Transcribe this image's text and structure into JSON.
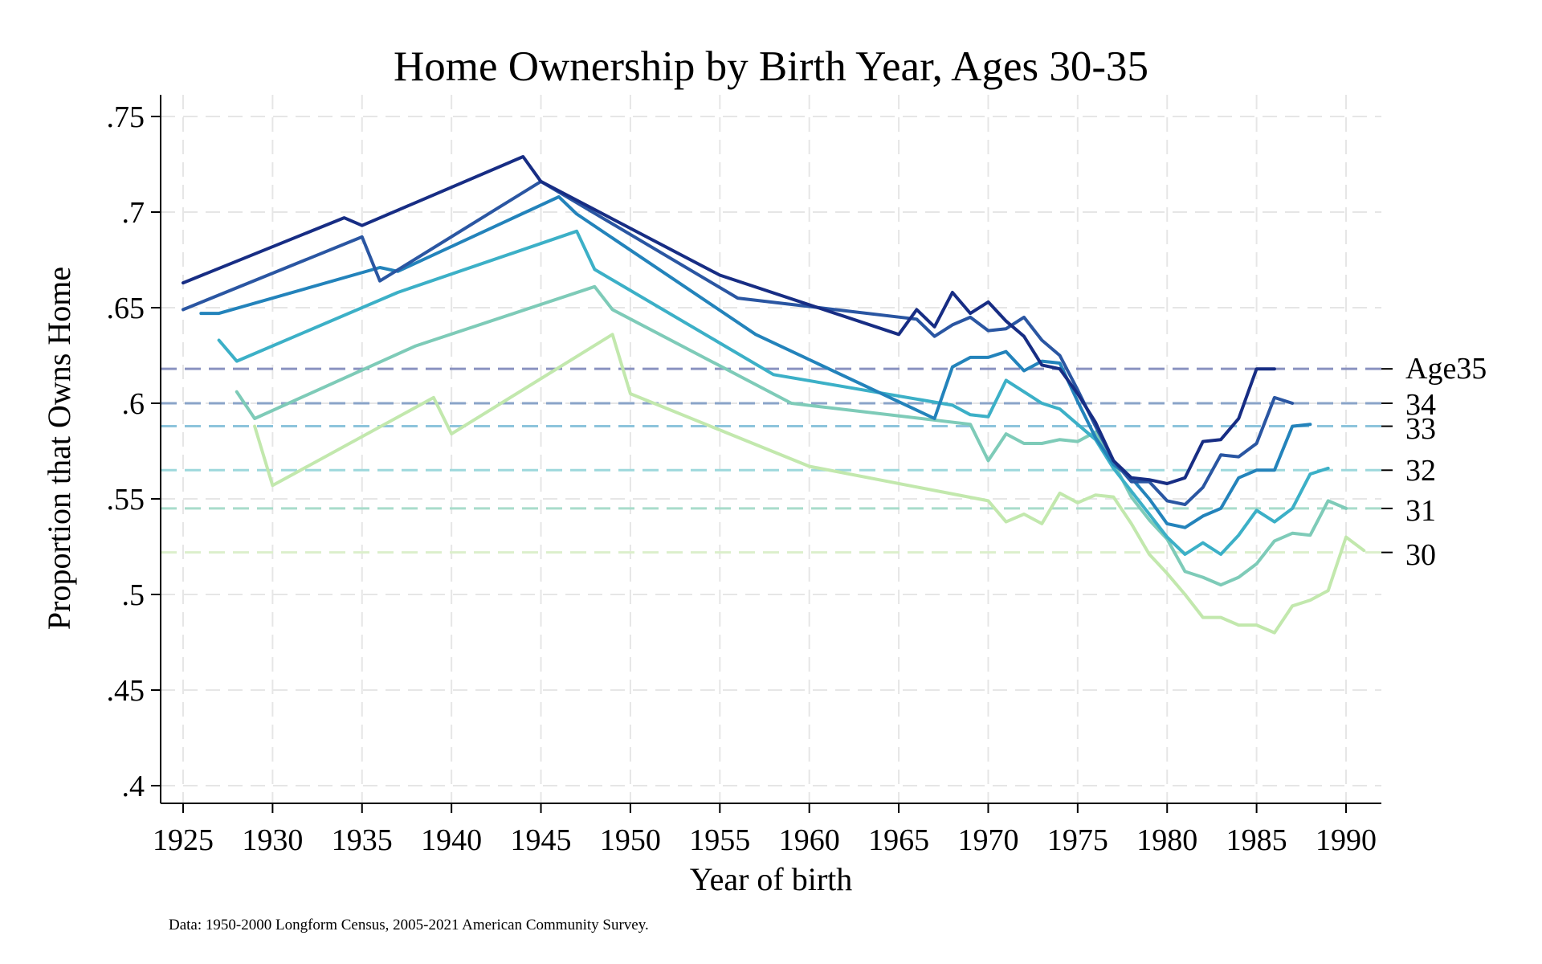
{
  "chart_data": {
    "type": "line",
    "title": "Home Ownership by Birth Year, Ages 30-35",
    "xlabel": "Year of birth",
    "ylabel": "Proportion that Owns Home",
    "note": "Data: 1950-2000 Longform Census, 2005-2021 American Community Survey.",
    "xlim": [
      1924,
      1992
    ],
    "ylim": [
      0.39,
      0.76
    ],
    "xticks": [
      1925,
      1930,
      1935,
      1940,
      1945,
      1950,
      1955,
      1960,
      1965,
      1970,
      1975,
      1980,
      1985,
      1990
    ],
    "xtick_labels": [
      "1925",
      "1930",
      "1935",
      "1940",
      "1945",
      "1950",
      "1955",
      "1960",
      "1965",
      "1970",
      "1975",
      "1980",
      "1985",
      "1990"
    ],
    "yticks": [
      0.4,
      0.45,
      0.5,
      0.55,
      0.6,
      0.65,
      0.7,
      0.75
    ],
    "ytick_labels": [
      ".4",
      ".45",
      ".5",
      ".55",
      ".6",
      ".65",
      ".7",
      ".75"
    ],
    "grid": true,
    "reference_lines": [
      {
        "label": "Age35",
        "value": 0.618,
        "color": "#8a92c0"
      },
      {
        "label": "34",
        "value": 0.6,
        "color": "#8aa4c8"
      },
      {
        "label": "33",
        "value": 0.588,
        "color": "#8ec4dc"
      },
      {
        "label": "32",
        "value": 0.565,
        "color": "#9dd8dc"
      },
      {
        "label": "31",
        "value": 0.545,
        "color": "#a8dccb"
      },
      {
        "label": "30",
        "value": 0.522,
        "color": "#dcefcc"
      }
    ],
    "series": [
      {
        "age": 35,
        "color": "#172d84",
        "points": [
          [
            1925,
            0.663
          ],
          [
            1934,
            0.697
          ],
          [
            1935,
            0.693
          ],
          [
            1944,
            0.729
          ],
          [
            1945,
            0.716
          ],
          [
            1955,
            0.667
          ],
          [
            1965,
            0.636
          ],
          [
            1966,
            0.649
          ],
          [
            1967,
            0.64
          ],
          [
            1968,
            0.658
          ],
          [
            1969,
            0.647
          ],
          [
            1970,
            0.653
          ],
          [
            1971,
            0.643
          ],
          [
            1972,
            0.635
          ],
          [
            1973,
            0.62
          ],
          [
            1974,
            0.618
          ],
          [
            1975,
            0.605
          ],
          [
            1976,
            0.59
          ],
          [
            1977,
            0.57
          ],
          [
            1978,
            0.561
          ],
          [
            1979,
            0.56
          ],
          [
            1980,
            0.558
          ],
          [
            1981,
            0.561
          ],
          [
            1982,
            0.58
          ],
          [
            1983,
            0.581
          ],
          [
            1984,
            0.592
          ],
          [
            1985,
            0.618
          ],
          [
            1986,
            0.618
          ]
        ]
      },
      {
        "age": 34,
        "color": "#2a56a2",
        "points": [
          [
            1925,
            0.649
          ],
          [
            1935,
            0.687
          ],
          [
            1936,
            0.664
          ],
          [
            1945,
            0.716
          ],
          [
            1956,
            0.655
          ],
          [
            1966,
            0.644
          ],
          [
            1967,
            0.635
          ],
          [
            1968,
            0.641
          ],
          [
            1969,
            0.645
          ],
          [
            1970,
            0.638
          ],
          [
            1971,
            0.639
          ],
          [
            1972,
            0.645
          ],
          [
            1973,
            0.633
          ],
          [
            1974,
            0.625
          ],
          [
            1975,
            0.607
          ],
          [
            1976,
            0.588
          ],
          [
            1977,
            0.57
          ],
          [
            1978,
            0.559
          ],
          [
            1979,
            0.559
          ],
          [
            1980,
            0.549
          ],
          [
            1981,
            0.547
          ],
          [
            1982,
            0.556
          ],
          [
            1983,
            0.573
          ],
          [
            1984,
            0.572
          ],
          [
            1985,
            0.579
          ],
          [
            1986,
            0.603
          ],
          [
            1987,
            0.6
          ]
        ]
      },
      {
        "age": 33,
        "color": "#2383bb",
        "points": [
          [
            1926,
            0.647
          ],
          [
            1927,
            0.647
          ],
          [
            1936,
            0.671
          ],
          [
            1937,
            0.669
          ],
          [
            1946,
            0.708
          ],
          [
            1947,
            0.699
          ],
          [
            1957,
            0.636
          ],
          [
            1967,
            0.592
          ],
          [
            1968,
            0.619
          ],
          [
            1969,
            0.624
          ],
          [
            1970,
            0.624
          ],
          [
            1971,
            0.627
          ],
          [
            1972,
            0.617
          ],
          [
            1973,
            0.622
          ],
          [
            1974,
            0.621
          ],
          [
            1975,
            0.601
          ],
          [
            1976,
            0.582
          ],
          [
            1977,
            0.568
          ],
          [
            1978,
            0.561
          ],
          [
            1979,
            0.55
          ],
          [
            1980,
            0.537
          ],
          [
            1981,
            0.535
          ],
          [
            1982,
            0.541
          ],
          [
            1983,
            0.545
          ],
          [
            1984,
            0.561
          ],
          [
            1985,
            0.565
          ],
          [
            1986,
            0.565
          ],
          [
            1987,
            0.588
          ],
          [
            1988,
            0.589
          ]
        ]
      },
      {
        "age": 32,
        "color": "#3cb0c7",
        "points": [
          [
            1927,
            0.633
          ],
          [
            1928,
            0.622
          ],
          [
            1937,
            0.658
          ],
          [
            1947,
            0.69
          ],
          [
            1948,
            0.67
          ],
          [
            1958,
            0.615
          ],
          [
            1968,
            0.599
          ],
          [
            1969,
            0.594
          ],
          [
            1970,
            0.593
          ],
          [
            1971,
            0.612
          ],
          [
            1972,
            0.606
          ],
          [
            1973,
            0.6
          ],
          [
            1974,
            0.597
          ],
          [
            1975,
            0.589
          ],
          [
            1976,
            0.581
          ],
          [
            1977,
            0.566
          ],
          [
            1978,
            0.554
          ],
          [
            1979,
            0.542
          ],
          [
            1980,
            0.53
          ],
          [
            1981,
            0.521
          ],
          [
            1982,
            0.527
          ],
          [
            1983,
            0.521
          ],
          [
            1984,
            0.531
          ],
          [
            1985,
            0.544
          ],
          [
            1986,
            0.538
          ],
          [
            1987,
            0.545
          ],
          [
            1988,
            0.563
          ],
          [
            1989,
            0.566
          ]
        ]
      },
      {
        "age": 31,
        "color": "#7ecbb8",
        "points": [
          [
            1928,
            0.606
          ],
          [
            1929,
            0.592
          ],
          [
            1938,
            0.63
          ],
          [
            1948,
            0.661
          ],
          [
            1949,
            0.649
          ],
          [
            1959,
            0.6
          ],
          [
            1969,
            0.589
          ],
          [
            1970,
            0.57
          ],
          [
            1971,
            0.584
          ],
          [
            1972,
            0.579
          ],
          [
            1973,
            0.579
          ],
          [
            1974,
            0.581
          ],
          [
            1975,
            0.58
          ],
          [
            1976,
            0.585
          ],
          [
            1977,
            0.569
          ],
          [
            1978,
            0.551
          ],
          [
            1979,
            0.539
          ],
          [
            1980,
            0.529
          ],
          [
            1981,
            0.512
          ],
          [
            1982,
            0.509
          ],
          [
            1983,
            0.505
          ],
          [
            1984,
            0.509
          ],
          [
            1985,
            0.516
          ],
          [
            1986,
            0.528
          ],
          [
            1987,
            0.532
          ],
          [
            1988,
            0.531
          ],
          [
            1989,
            0.549
          ],
          [
            1990,
            0.545
          ]
        ]
      },
      {
        "age": 30,
        "color": "#c2e8ad",
        "points": [
          [
            1929,
            0.588
          ],
          [
            1930,
            0.557
          ],
          [
            1939,
            0.603
          ],
          [
            1940,
            0.584
          ],
          [
            1949,
            0.636
          ],
          [
            1950,
            0.605
          ],
          [
            1960,
            0.567
          ],
          [
            1970,
            0.549
          ],
          [
            1971,
            0.538
          ],
          [
            1972,
            0.542
          ],
          [
            1973,
            0.537
          ],
          [
            1974,
            0.553
          ],
          [
            1975,
            0.548
          ],
          [
            1976,
            0.552
          ],
          [
            1977,
            0.551
          ],
          [
            1978,
            0.537
          ],
          [
            1979,
            0.521
          ],
          [
            1980,
            0.511
          ],
          [
            1981,
            0.5
          ],
          [
            1982,
            0.488
          ],
          [
            1983,
            0.488
          ],
          [
            1984,
            0.484
          ],
          [
            1985,
            0.484
          ],
          [
            1986,
            0.48
          ],
          [
            1987,
            0.494
          ],
          [
            1988,
            0.497
          ],
          [
            1989,
            0.502
          ],
          [
            1990,
            0.53
          ],
          [
            1991,
            0.523
          ]
        ]
      }
    ]
  }
}
